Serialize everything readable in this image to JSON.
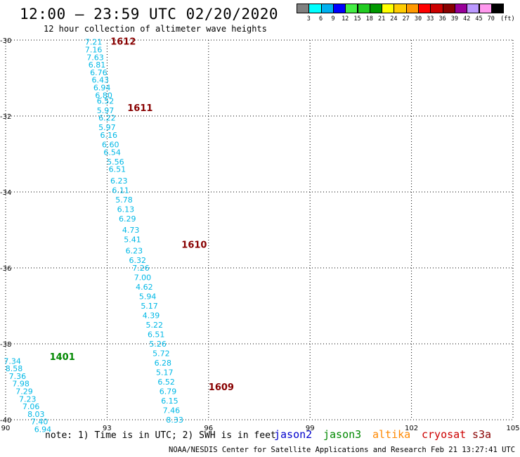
{
  "title": "12:00 – 23:59 UTC 02/20/2020",
  "subtitle": "12 hour collection of altimeter wave heights",
  "legend": {
    "labels": [
      "3",
      "6",
      "9",
      "12",
      "15",
      "18",
      "21",
      "24",
      "27",
      "30",
      "33",
      "36",
      "39",
      "42",
      "45",
      "70"
    ],
    "unit": "(ft)",
    "colors": [
      "#808080",
      "#00ffff",
      "#00b0f0",
      "#0000ff",
      "#44ee44",
      "#22cc22",
      "#009900",
      "#ffff00",
      "#ffcc00",
      "#ff9900",
      "#ff0000",
      "#cc0000",
      "#880000",
      "#990099",
      "#bb99ff",
      "#ff99ee",
      "#000000"
    ]
  },
  "note": "note:  1) Time is in UTC;  2) SWH is in feet",
  "satellites": [
    {
      "name": "jason2",
      "color": "#0000cc"
    },
    {
      "name": "jason3",
      "color": "#008800"
    },
    {
      "name": "altika",
      "color": "#ff8800"
    },
    {
      "name": "cryosat",
      "color": "#cc0000"
    },
    {
      "name": "s3a",
      "color": "#880000"
    }
  ],
  "credit": "NOAA/NESDIS Center for Satellite Applications and Research    Feb 21 13:27:41 UTC 2020",
  "chart_data": {
    "type": "map",
    "x_ticks": [
      90,
      93,
      96,
      99,
      102,
      105
    ],
    "y_ticks": [
      -30,
      -32,
      -34,
      -36,
      -38,
      -40
    ],
    "xlim": [
      90,
      105
    ],
    "ylim": [
      -40,
      -30
    ],
    "grid": true,
    "time_labels": [
      {
        "text": "1612",
        "lon": 93.1,
        "lat": -30.05,
        "color": "#880000"
      },
      {
        "text": "1611",
        "lon": 93.6,
        "lat": -31.8,
        "color": "#880000"
      },
      {
        "text": "1610",
        "lon": 95.2,
        "lat": -35.4,
        "color": "#880000"
      },
      {
        "text": "1609",
        "lon": 96.0,
        "lat": -39.15,
        "color": "#880000"
      },
      {
        "text": "1401",
        "lon": 91.3,
        "lat": -38.35,
        "color": "#008800"
      }
    ],
    "tracks": [
      {
        "satellite": "s3a",
        "color": "#00b8e6",
        "points": [
          {
            "lon": 92.6,
            "lat": -30.05,
            "swh": "7.21"
          },
          {
            "lon": 92.6,
            "lat": -30.25,
            "swh": "7.16"
          },
          {
            "lon": 92.65,
            "lat": -30.45,
            "swh": "7.63"
          },
          {
            "lon": 92.7,
            "lat": -30.65,
            "swh": "6.81"
          },
          {
            "lon": 92.75,
            "lat": -30.85,
            "swh": "6.76"
          },
          {
            "lon": 92.8,
            "lat": -31.05,
            "swh": "6.43"
          },
          {
            "lon": 92.85,
            "lat": -31.25,
            "swh": "6.94"
          },
          {
            "lon": 92.9,
            "lat": -31.45,
            "swh": "6.80"
          },
          {
            "lon": 92.95,
            "lat": -31.6,
            "swh": "6.52"
          },
          {
            "lon": 92.95,
            "lat": -31.85,
            "swh": "5.97"
          },
          {
            "lon": 93.0,
            "lat": -32.05,
            "swh": "6.22"
          },
          {
            "lon": 93.0,
            "lat": -32.3,
            "swh": "5.97"
          },
          {
            "lon": 93.05,
            "lat": -32.5,
            "swh": "6.16"
          },
          {
            "lon": 93.1,
            "lat": -32.75,
            "swh": "6.60"
          },
          {
            "lon": 93.15,
            "lat": -32.95,
            "swh": "6.54"
          },
          {
            "lon": 93.25,
            "lat": -33.2,
            "swh": "5.56"
          },
          {
            "lon": 93.3,
            "lat": -33.4,
            "swh": "6.51"
          },
          {
            "lon": 93.35,
            "lat": -33.7,
            "swh": "6.23"
          },
          {
            "lon": 93.4,
            "lat": -33.95,
            "swh": "6.11"
          },
          {
            "lon": 93.5,
            "lat": -34.2,
            "swh": "5.78"
          },
          {
            "lon": 93.55,
            "lat": -34.45,
            "swh": "6.13"
          },
          {
            "lon": 93.6,
            "lat": -34.7,
            "swh": "6.29"
          },
          {
            "lon": 93.7,
            "lat": -35.0,
            "swh": "4.73"
          },
          {
            "lon": 93.75,
            "lat": -35.25,
            "swh": "5.41"
          },
          {
            "lon": 93.8,
            "lat": -35.55,
            "swh": "6.23"
          },
          {
            "lon": 93.9,
            "lat": -35.8,
            "swh": "6.32"
          },
          {
            "lon": 94.0,
            "lat": -36.0,
            "swh": "7.26"
          },
          {
            "lon": 94.05,
            "lat": -36.25,
            "swh": "7.00"
          },
          {
            "lon": 94.1,
            "lat": -36.5,
            "swh": "4.62"
          },
          {
            "lon": 94.2,
            "lat": -36.75,
            "swh": "5.94"
          },
          {
            "lon": 94.25,
            "lat": -37.0,
            "swh": "5.17"
          },
          {
            "lon": 94.3,
            "lat": -37.25,
            "swh": "4.39"
          },
          {
            "lon": 94.4,
            "lat": -37.5,
            "swh": "5.22"
          },
          {
            "lon": 94.45,
            "lat": -37.75,
            "swh": "6.51"
          },
          {
            "lon": 94.5,
            "lat": -38.0,
            "swh": "5.26"
          },
          {
            "lon": 94.6,
            "lat": -38.25,
            "swh": "5.72"
          },
          {
            "lon": 94.65,
            "lat": -38.5,
            "swh": "6.28"
          },
          {
            "lon": 94.7,
            "lat": -38.75,
            "swh": "5.17"
          },
          {
            "lon": 94.75,
            "lat": -39.0,
            "swh": "6.52"
          },
          {
            "lon": 94.8,
            "lat": -39.25,
            "swh": "6.79"
          },
          {
            "lon": 94.85,
            "lat": -39.5,
            "swh": "6.15"
          },
          {
            "lon": 94.9,
            "lat": -39.75,
            "swh": "7.46"
          },
          {
            "lon": 95.0,
            "lat": -40.0,
            "swh": "8.33"
          }
        ]
      },
      {
        "satellite": "jason3",
        "color": "#00b8e6",
        "points": [
          {
            "lon": 90.2,
            "lat": -38.45,
            "swh": "7.34"
          },
          {
            "lon": 90.25,
            "lat": -38.65,
            "swh": "8.58"
          },
          {
            "lon": 90.35,
            "lat": -38.85,
            "swh": "7.36"
          },
          {
            "lon": 90.45,
            "lat": -39.05,
            "swh": "7.98"
          },
          {
            "lon": 90.55,
            "lat": -39.25,
            "swh": "7.29"
          },
          {
            "lon": 90.65,
            "lat": -39.45,
            "swh": "7.23"
          },
          {
            "lon": 90.75,
            "lat": -39.65,
            "swh": "7.06"
          },
          {
            "lon": 90.9,
            "lat": -39.85,
            "swh": "8.03"
          },
          {
            "lon": 91.0,
            "lat": -40.05,
            "swh": "7.40"
          },
          {
            "lon": 91.1,
            "lat": -40.25,
            "swh": "6.94"
          }
        ]
      }
    ]
  }
}
